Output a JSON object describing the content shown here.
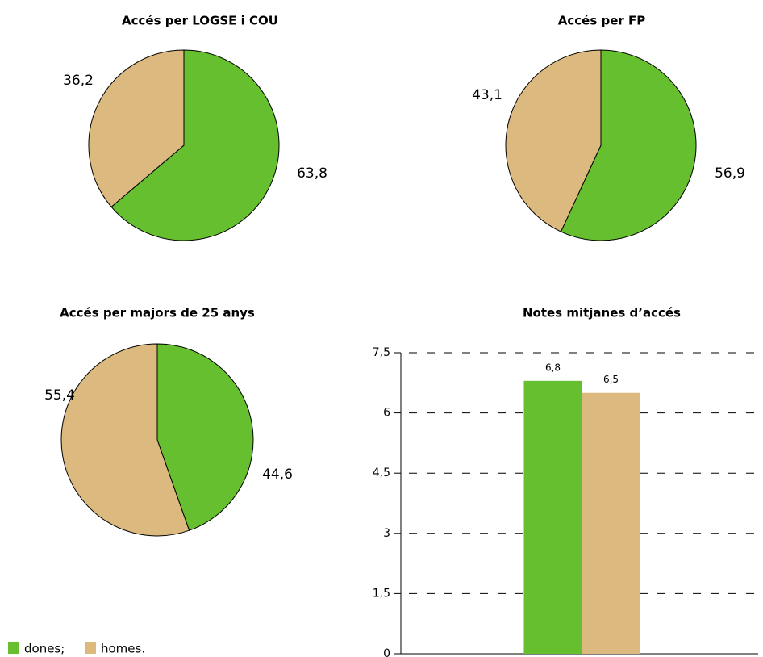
{
  "chart_data": [
    {
      "type": "pie",
      "title": "Accés per LOGSE i COU",
      "values": [
        63.8,
        36.2
      ],
      "value_labels": [
        "63,8",
        "36,2"
      ],
      "colors": [
        "#66bf2e",
        "#dcb97e"
      ]
    },
    {
      "type": "pie",
      "title": "Accés per FP",
      "values": [
        56.9,
        43.1
      ],
      "value_labels": [
        "56,9",
        "43,1"
      ],
      "colors": [
        "#66bf2e",
        "#dcb97e"
      ]
    },
    {
      "type": "pie",
      "title": "Accés per majors de 25 anys",
      "values": [
        44.6,
        55.4
      ],
      "value_labels": [
        "44,6",
        "55,4"
      ],
      "colors": [
        "#66bf2e",
        "#dcb97e"
      ]
    },
    {
      "type": "bar",
      "title": "Notes mitjanes d’accés",
      "categories": [
        null
      ],
      "series": [
        {
          "name": "dones;",
          "color": "#66bf2e",
          "values": [
            6.8
          ],
          "value_labels": [
            "6,8"
          ]
        },
        {
          "name": "homes.",
          "color": "#dcb97e",
          "values": [
            6.5
          ],
          "value_labels": [
            "6,5"
          ]
        }
      ],
      "ylim": [
        0,
        7.5
      ],
      "yticks": [
        0,
        {
          "value": 1.5,
          "label": "1,5"
        },
        3,
        {
          "value": 4.5,
          "label": "4,5"
        },
        6,
        {
          "value": 7.5,
          "label": "7,5"
        }
      ],
      "grid": true
    }
  ]
}
